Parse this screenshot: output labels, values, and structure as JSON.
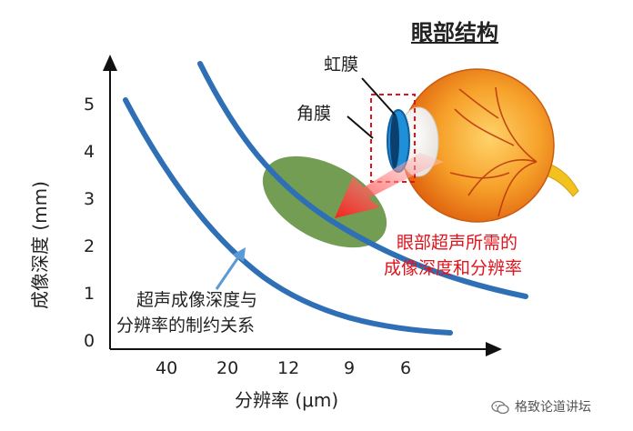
{
  "title": "眼部结构",
  "axes": {
    "y_label": "成像深度 (mm)",
    "x_label": "分辨率 (μm)",
    "y_ticks": [
      "5",
      "4",
      "3",
      "2",
      "1",
      "0"
    ],
    "x_ticks": [
      "40",
      "20",
      "12",
      "9",
      "6"
    ]
  },
  "eye_labels": {
    "iris": "虹膜",
    "cornea": "角膜"
  },
  "callout_red": {
    "line1": "眼部超声所需的",
    "line2": "成像深度和分辨率"
  },
  "curve_note": {
    "line1": "超声成像深度与",
    "line2": "分辨率的制约关系"
  },
  "watermark": {
    "text": "格致论道讲坛",
    "icon": "wechat-icon"
  },
  "colors": {
    "curve": "#2e6fb5",
    "target_region": "#5e8f3a",
    "red_text": "#e0141c",
    "eye_sclera": "#f08c1a",
    "iris": "#1f8fd8",
    "arrow_blue": "#5b9bd5"
  }
}
